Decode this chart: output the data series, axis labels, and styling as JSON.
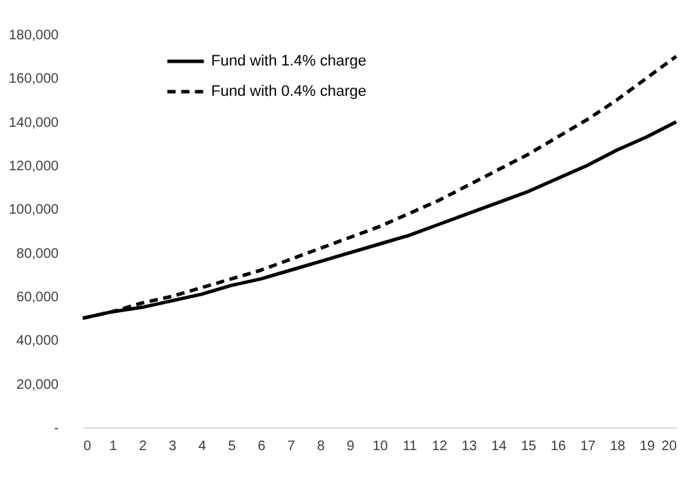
{
  "chart_data": {
    "type": "line",
    "x": [
      0,
      1,
      2,
      3,
      4,
      5,
      6,
      7,
      8,
      9,
      10,
      11,
      12,
      13,
      14,
      15,
      16,
      17,
      18,
      19,
      20
    ],
    "series": [
      {
        "name": "Fund with 1.4% charge",
        "color": "#000000",
        "line_style": "solid",
        "values": [
          50000,
          53000,
          55000,
          58000,
          61000,
          65000,
          68000,
          72000,
          76000,
          80000,
          84000,
          88000,
          93000,
          98000,
          103000,
          108000,
          114000,
          120000,
          127000,
          133000,
          140000
        ]
      },
      {
        "name": "Fund with 0.4% charge",
        "color": "#000000",
        "line_style": "dashed",
        "values": [
          50000,
          53000,
          57000,
          60000,
          64000,
          68000,
          72000,
          77000,
          82000,
          87000,
          92000,
          98000,
          104000,
          111000,
          118000,
          125000,
          133000,
          141000,
          150000,
          160000,
          170000
        ]
      }
    ],
    "xlim": [
      0,
      20
    ],
    "xticks": [
      0,
      1,
      2,
      3,
      4,
      5,
      6,
      7,
      8,
      9,
      10,
      11,
      12,
      13,
      14,
      15,
      16,
      17,
      18,
      19,
      20
    ],
    "ylim": [
      0,
      180000
    ],
    "yticks": [
      {
        "value": 0,
        "label": "-"
      },
      {
        "value": 20000,
        "label": "20,000"
      },
      {
        "value": 40000,
        "label": "40,000"
      },
      {
        "value": 60000,
        "label": "60,000"
      },
      {
        "value": 80000,
        "label": "80,000"
      },
      {
        "value": 100000,
        "label": "100,000"
      },
      {
        "value": 120000,
        "label": "120,000"
      },
      {
        "value": 140000,
        "label": "140,000"
      },
      {
        "value": 160000,
        "label": "160,000"
      },
      {
        "value": 180000,
        "label": "180,000"
      }
    ],
    "grid": false,
    "legend": "top left",
    "marker": "none"
  }
}
